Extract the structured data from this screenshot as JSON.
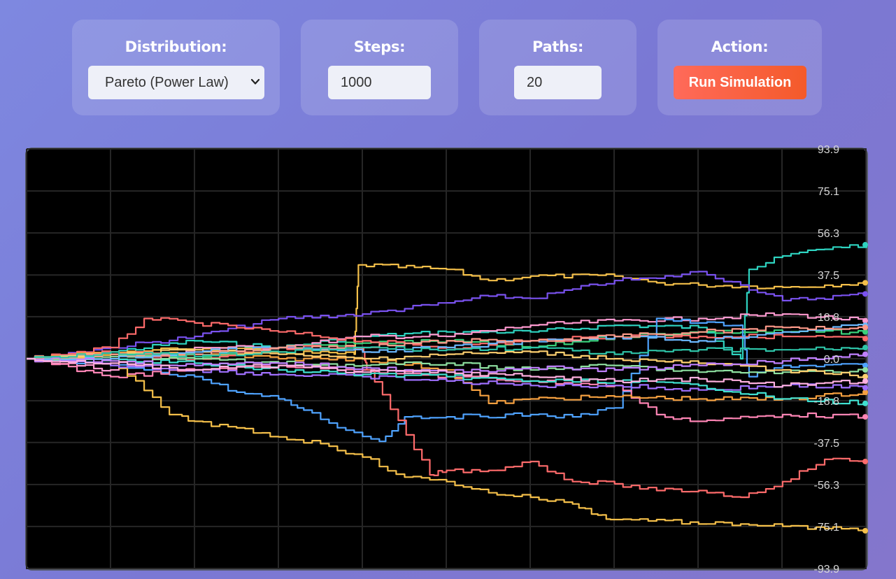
{
  "controls": {
    "distribution": {
      "label": "Distribution:",
      "value": "Pareto (Power Law)"
    },
    "steps": {
      "label": "Steps:",
      "value": "1000"
    },
    "paths": {
      "label": "Paths:",
      "value": "20"
    },
    "action": {
      "label": "Action:",
      "button_label": "Run Simulation"
    }
  },
  "colors": {
    "button_start": "#ff6a5a",
    "button_end": "#f45a2a",
    "chart_background": "#000000"
  },
  "icons": {
    "select_chevron": "chevron-down-icon"
  },
  "chart_data": {
    "type": "line",
    "title": "",
    "xlabel": "",
    "ylabel": "",
    "ylim": [
      -93.9,
      93.9
    ],
    "grid": true,
    "steps": 1000,
    "y_ticks": [
      "93.9",
      "75.1",
      "56.3",
      "37.5",
      "18.8",
      "0.0",
      "-18.8",
      "-37.5",
      "-56.3",
      "-75.1",
      "-93.9"
    ],
    "series": [
      {
        "color": "#2ed3c0",
        "x": [
          0,
          100,
          200,
          300,
          400,
          500,
          600,
          700,
          800,
          850,
          860,
          900,
          960,
          1000
        ],
        "y": [
          0,
          3,
          8,
          5,
          10,
          12,
          12,
          15,
          14,
          0,
          40,
          46,
          50,
          51
        ]
      },
      {
        "color": "#f5c04a",
        "x": [
          0,
          100,
          200,
          300,
          390,
          395,
          500,
          550,
          600,
          700,
          750,
          800,
          900,
          1000
        ],
        "y": [
          0,
          2,
          5,
          3,
          2,
          42,
          40,
          35,
          37,
          37,
          34,
          33,
          32,
          34
        ]
      },
      {
        "color": "#7a52f0",
        "x": [
          0,
          100,
          200,
          300,
          400,
          500,
          550,
          600,
          700,
          750,
          800,
          850,
          900,
          1000
        ],
        "y": [
          0,
          5,
          10,
          18,
          20,
          25,
          28,
          27,
          35,
          36,
          39,
          33,
          26,
          29
        ]
      },
      {
        "color": "#ff9ad0",
        "x": [
          0,
          100,
          200,
          300,
          400,
          500,
          600,
          700,
          800,
          900,
          1000
        ],
        "y": [
          0,
          -5,
          5,
          5,
          10,
          10,
          15,
          17,
          18,
          20,
          17
        ]
      },
      {
        "color": "#3ad07a",
        "x": [
          0,
          100,
          200,
          300,
          400,
          500,
          600,
          700,
          800,
          900,
          1000
        ],
        "y": [
          0,
          2,
          0,
          5,
          7,
          8,
          5,
          10,
          12,
          12,
          12
        ]
      },
      {
        "color": "#ff6b6b",
        "x": [
          0,
          100,
          140,
          200,
          300,
          400,
          500,
          600,
          700,
          800,
          900,
          1000
        ],
        "y": [
          0,
          5,
          18,
          16,
          12,
          8,
          5,
          8,
          10,
          10,
          10,
          9
        ]
      },
      {
        "color": "#4fa3ff",
        "x": [
          0,
          100,
          200,
          250,
          300,
          330,
          380,
          420,
          450,
          500,
          600,
          650,
          700,
          750,
          800,
          850,
          860,
          900,
          1000
        ],
        "y": [
          0,
          -3,
          -8,
          -15,
          -18,
          -23,
          -32,
          -37,
          -26,
          -26,
          -25,
          -26,
          -22,
          18,
          16,
          15,
          -8,
          -3,
          -3
        ]
      },
      {
        "color": "#ff85b5",
        "x": [
          0,
          100,
          200,
          300,
          400,
          500,
          600,
          700,
          750,
          800,
          900,
          1000
        ],
        "y": [
          0,
          -8,
          -5,
          -3,
          -5,
          -8,
          -10,
          -12,
          -25,
          -28,
          -25,
          -26
        ]
      },
      {
        "color": "#f5a040",
        "x": [
          0,
          100,
          200,
          300,
          400,
          500,
          550,
          600,
          700,
          800,
          900,
          1000
        ],
        "y": [
          0,
          3,
          2,
          0,
          0,
          -5,
          -20,
          -18,
          -17,
          -18,
          -18,
          -15
        ]
      },
      {
        "color": "#ff6b6b",
        "x": [
          0,
          100,
          200,
          300,
          400,
          405,
          480,
          500,
          550,
          600,
          650,
          700,
          750,
          800,
          850,
          900,
          950,
          1000
        ],
        "y": [
          0,
          3,
          0,
          5,
          5,
          -5,
          -52,
          -50,
          -50,
          -46,
          -55,
          -56,
          -59,
          -59,
          -62,
          -55,
          -45,
          -46
        ]
      },
      {
        "color": "#f5c04a",
        "x": [
          0,
          100,
          170,
          200,
          300,
          350,
          400,
          450,
          500,
          550,
          600,
          650,
          680,
          700,
          750,
          800,
          850,
          900,
          950,
          1000
        ],
        "y": [
          0,
          0,
          -25,
          -28,
          -35,
          -38,
          -44,
          -53,
          -55,
          -60,
          -62,
          -65,
          -70,
          -72,
          -72,
          -74,
          -74,
          -75,
          -76,
          -77
        ]
      },
      {
        "color": "#a070ff",
        "x": [
          0,
          100,
          200,
          300,
          400,
          500,
          600,
          700,
          800,
          900,
          1000
        ],
        "y": [
          0,
          -3,
          -5,
          -7,
          -8,
          -10,
          -12,
          -12,
          -14,
          -12,
          -13
        ]
      },
      {
        "color": "#40e0d0",
        "x": [
          0,
          100,
          200,
          300,
          400,
          500,
          600,
          700,
          800,
          900,
          1000
        ],
        "y": [
          0,
          0,
          -2,
          -5,
          -7,
          -8,
          -10,
          -10,
          -12,
          -18,
          -20
        ]
      },
      {
        "color": "#8ee0a0",
        "x": [
          0,
          100,
          200,
          300,
          400,
          500,
          600,
          700,
          800,
          900,
          1000
        ],
        "y": [
          0,
          1,
          0,
          -2,
          -3,
          -2,
          -5,
          -3,
          -6,
          -6,
          -5
        ]
      },
      {
        "color": "#ffd070",
        "x": [
          0,
          100,
          200,
          300,
          400,
          500,
          600,
          700,
          800,
          900,
          1000
        ],
        "y": [
          0,
          2,
          4,
          2,
          0,
          2,
          3,
          0,
          -2,
          -5,
          -8
        ]
      },
      {
        "color": "#6bb8ff",
        "x": [
          0,
          100,
          200,
          300,
          400,
          500,
          600,
          700,
          800,
          900,
          1000
        ],
        "y": [
          0,
          0,
          3,
          5,
          3,
          5,
          8,
          10,
          8,
          12,
          15
        ]
      },
      {
        "color": "#ff9a8a",
        "x": [
          0,
          100,
          200,
          300,
          400,
          500,
          600,
          700,
          800,
          900,
          1000
        ],
        "y": [
          0,
          2,
          2,
          5,
          5,
          8,
          8,
          10,
          12,
          14,
          14
        ]
      },
      {
        "color": "#c080ff",
        "x": [
          0,
          100,
          200,
          300,
          400,
          500,
          600,
          700,
          800,
          900,
          1000
        ],
        "y": [
          0,
          -1,
          -3,
          -2,
          -4,
          -6,
          -4,
          -5,
          -3,
          -1,
          2
        ]
      },
      {
        "color": "#2ec4a8",
        "x": [
          0,
          100,
          200,
          300,
          400,
          500,
          600,
          700,
          800,
          900,
          1000
        ],
        "y": [
          0,
          3,
          1,
          3,
          5,
          4,
          5,
          2,
          4,
          4,
          5
        ]
      },
      {
        "color": "#ffb0e0",
        "x": [
          0,
          100,
          200,
          300,
          400,
          500,
          600,
          700,
          800,
          900,
          1000
        ],
        "y": [
          0,
          -2,
          -5,
          -3,
          -6,
          -6,
          -8,
          -10,
          -9,
          -12,
          -10
        ]
      }
    ]
  }
}
